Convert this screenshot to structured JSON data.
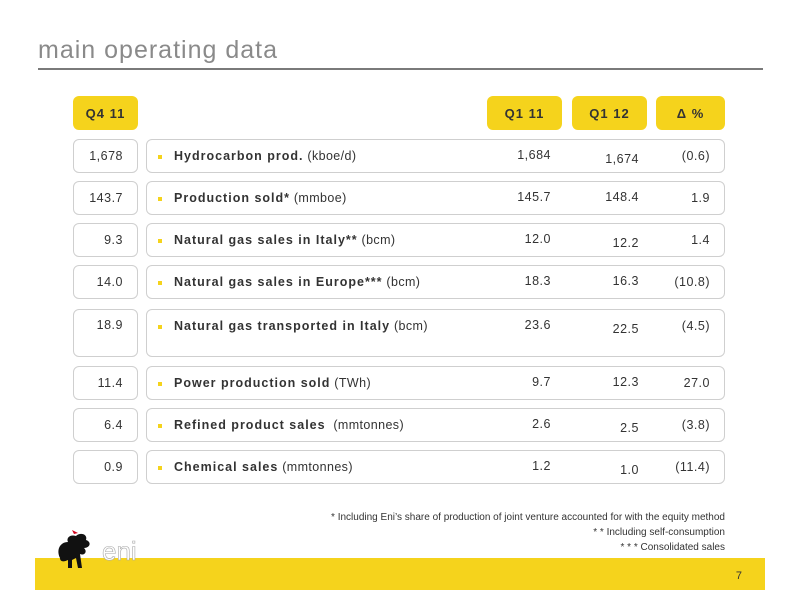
{
  "title": "main operating data",
  "headers": {
    "prev_quarter": "Q4 11",
    "q1_prev": "Q1 11",
    "q1_curr": "Q1 12",
    "delta": "Δ %"
  },
  "rows": [
    {
      "prev": "1,678",
      "label_bold": "Hydrocarbon prod.",
      "label_unit": " (kboe/d)",
      "q1_prev": "1,684",
      "q1_curr": "1,674",
      "delta": "(0.6)"
    },
    {
      "prev": "143.7",
      "label_bold": "Production  sold*",
      "label_unit": " (mmboe)",
      "q1_prev": "145.7",
      "q1_curr": "148.4",
      "delta": "1.9"
    },
    {
      "prev": "9.3",
      "label_bold": "Natural gas sales in Italy**",
      "label_unit": " (bcm)",
      "q1_prev": "12.0",
      "q1_curr": "12.2",
      "delta": "1.4"
    },
    {
      "prev": "14.0",
      "label_bold": "Natural gas sales in Europe***",
      "label_unit": " (bcm)",
      "q1_prev": "18.3",
      "q1_curr": "16.3",
      "delta": "(10.8)"
    },
    {
      "prev": "18.9",
      "label_bold": "Natural gas transported in Italy",
      "label_unit": " (bcm)",
      "q1_prev": "23.6",
      "q1_curr": "22.5",
      "delta": "(4.5)"
    },
    {
      "prev": "11.4",
      "label_bold": "Power production sold",
      "label_unit": " (TWh)",
      "q1_prev": "9.7",
      "q1_curr": "12.3",
      "delta": "27.0"
    },
    {
      "prev": "6.4",
      "label_bold": "Refined product sales",
      "label_unit": "  (mmtonnes)",
      "q1_prev": "2.6",
      "q1_curr": "2.5",
      "delta": "(3.8)"
    },
    {
      "prev": "0.9",
      "label_bold": "Chemical sales",
      "label_unit": " (mmtonnes)",
      "q1_prev": "1.2",
      "q1_curr": "1.0",
      "delta": "(11.4)"
    }
  ],
  "footnotes": [
    "*   Including Eni’s share of production of joint venture accounted for with the equity method",
    "* *   Including self-consumption",
    "* * *   Consolidated sales"
  ],
  "logo_text": "eni",
  "page_number": "7",
  "colors": {
    "accent": "#f5d31c",
    "title": "#8a8a8a"
  }
}
